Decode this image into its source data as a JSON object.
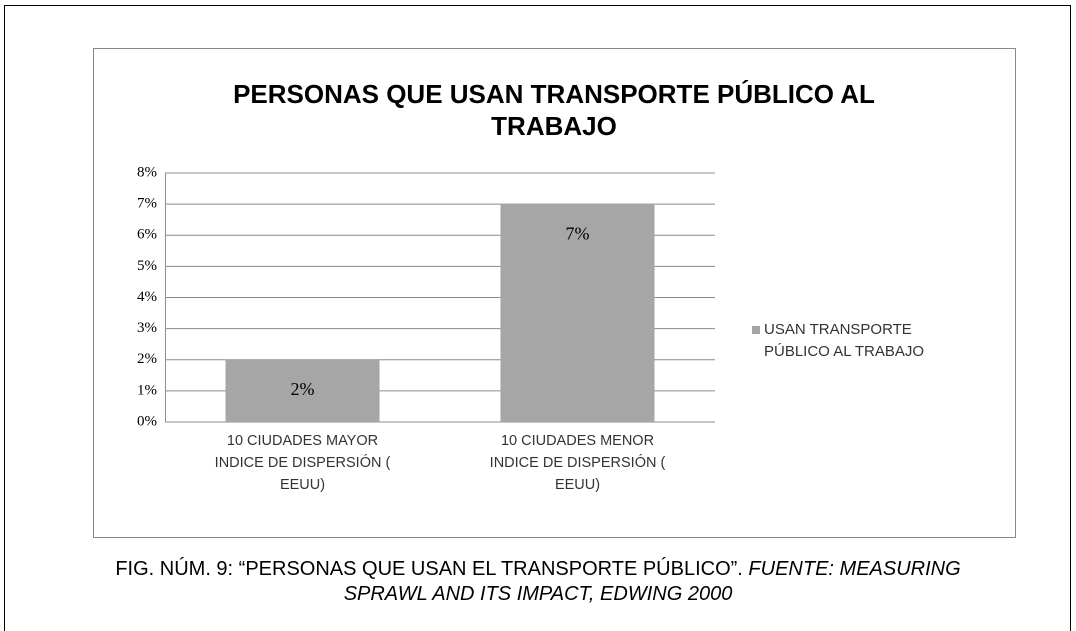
{
  "chart_data": {
    "type": "bar",
    "title": "PERSONAS QUE USAN TRANSPORTE PÚBLICO AL TRABAJO",
    "categories": [
      "10 CIUDADES MAYOR INDICE DE DISPERSIÓN ( EEUU)",
      "10 CIUDADES MENOR INDICE DE DISPERSIÓN ( EEUU)"
    ],
    "series": [
      {
        "name": "USAN TRANSPORTE PÚBLICO AL TRABAJO",
        "color": "#a6a6a6",
        "values": [
          2,
          7
        ],
        "value_labels": [
          "2%",
          "7%"
        ]
      }
    ],
    "ylim": [
      0,
      8
    ],
    "yticks": [
      {
        "value": 0,
        "label": "0%"
      },
      {
        "value": 1,
        "label": "1%"
      },
      {
        "value": 2,
        "label": "2%"
      },
      {
        "value": 3,
        "label": "3%"
      },
      {
        "value": 4,
        "label": "4%"
      },
      {
        "value": 5,
        "label": "5%"
      },
      {
        "value": 6,
        "label": "6%"
      },
      {
        "value": 7,
        "label": "7%"
      },
      {
        "value": 8,
        "label": "8%"
      }
    ],
    "grid": true,
    "legend": "right"
  },
  "caption": {
    "text": "FIG. NÚM. 9: “PERSONAS QUE USAN EL TRANSPORTE PÚBLICO”.",
    "source": "FUENTE: MEASURING SPRAWL AND ITS IMPACT, EDWING 2000"
  }
}
